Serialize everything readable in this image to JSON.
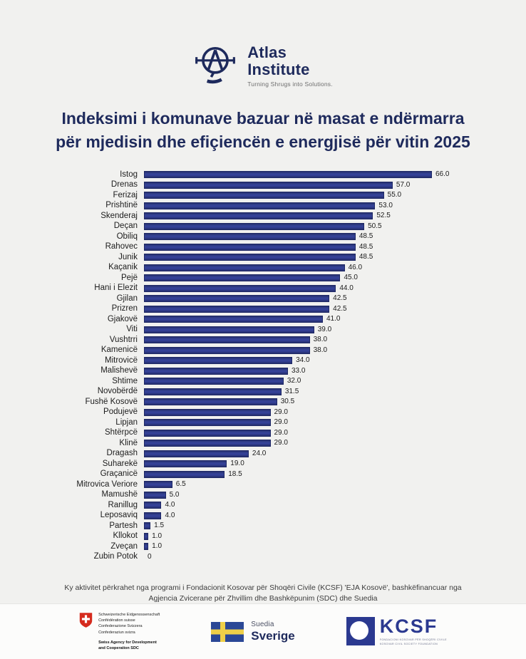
{
  "header": {
    "name_line1": "Atlas",
    "name_line2": "Institute",
    "tagline": "Turning Shrugs into Solutions."
  },
  "title": {
    "lines": [
      "Indeksimi i komunave bazuar në masat e ndërmarra",
      "për mjedisin dhe efiçiencën e energjisë për vitin 2025"
    ]
  },
  "chart_data": {
    "type": "bar",
    "orientation": "horizontal",
    "title": "Indeksimi i komunave bazuar në masat e ndërmarra për mjedisin dhe efiçiencën e energjisë për vitin 2025",
    "xlabel": "",
    "ylabel": "",
    "xlim": [
      0,
      66
    ],
    "grid": false,
    "legend": false,
    "bar_color": "#2f3c8e",
    "categories": [
      "Istog",
      "Drenas",
      "Ferizaj",
      "Prishtinë",
      "Skenderaj",
      "Deçan",
      "Obiliq",
      "Rahovec",
      "Junik",
      "Kaçanik",
      "Pejë",
      "Hani i Elezit",
      "Gjilan",
      "Prizren",
      "Gjakovë",
      "Viti",
      "Vushtrri",
      "Kamenicë",
      "Mitrovicë",
      "Malishevë",
      "Shtime",
      "Novobërdë",
      "Fushë Kosovë",
      "Podujevë",
      "Lipjan",
      "Shtërpcë",
      "Klinë",
      "Dragash",
      "Suharekë",
      "Graçanicë",
      "Mitrovica Veriore",
      "Mamushë",
      "Ranillug",
      "Leposaviq",
      "Partesh",
      "Kllokot",
      "Zveçan",
      "Zubin Potok"
    ],
    "values": [
      66,
      57,
      55,
      53,
      52.5,
      50.5,
      48.5,
      48.5,
      48.5,
      46,
      45,
      44,
      42.5,
      42.5,
      41,
      39,
      38,
      38,
      34,
      33,
      32,
      31.5,
      30.5,
      29,
      29,
      29,
      29,
      24,
      19,
      18.5,
      6.5,
      5,
      4,
      4,
      1.5,
      1,
      1,
      0
    ],
    "value_labels": [
      "66.0",
      "57.0",
      "55.0",
      "53.0",
      "52.5",
      "50.5",
      "48.5",
      "48.5",
      "48.5",
      "46.0",
      "45.0",
      "44.0",
      "42.5",
      "42.5",
      "41.0",
      "39.0",
      "38.0",
      "38.0",
      "34.0",
      "33.0",
      "32.0",
      "31.5",
      "30.5",
      "29.0",
      "29.0",
      "29.0",
      "29.0",
      "24.0",
      "19.0",
      "18.5",
      "6.5",
      "5.0",
      "4.0",
      "4.0",
      "1.5",
      "1.0",
      "1.0",
      "0"
    ]
  },
  "footer": {
    "note_lines": [
      "Ky aktivitet përkrahet nga programi i Fondacionit Kosovar për Shoqëri Civile (KCSF) 'EJA Kosovë', bashkëfinancuar nga",
      "Agjencia Zvicerane për Zhvillim dhe Bashkëpunim (SDC) dhe Suedia"
    ],
    "swiss": {
      "lines": [
        "Schweizerische Eidgenossenschaft",
        "Confédération suisse",
        "Confederazione Svizzera",
        "Confederaziun svizra"
      ],
      "agency_lines": [
        "Swiss Agency for Development",
        "and Cooperation SDC"
      ]
    },
    "sweden": {
      "label_top": "Suedia",
      "label_bottom": "Sverige"
    },
    "kcsf": {
      "acronym": "KCSF",
      "sub_lines": [
        "FONDACIONI KOSOVAR PËR SHOQËRI CIVILE",
        "KOSOVAR CIVIL SOCIETY FOUNDATION"
      ]
    }
  },
  "colors": {
    "background": "#f1f1ef",
    "navy": "#1e2a5c",
    "bar": "#2f3c8e",
    "swiss_red": "#d52b1e",
    "sweden_blue": "#2b4896",
    "sweden_yellow": "#efd048",
    "kcsf_blue": "#2b3990"
  }
}
